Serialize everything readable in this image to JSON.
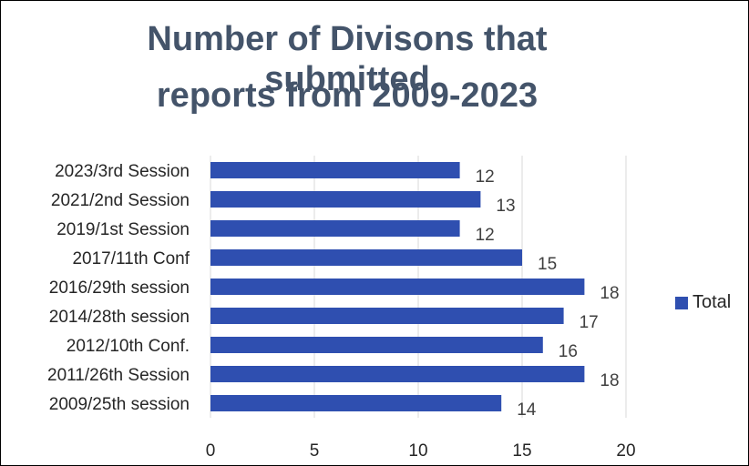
{
  "chart_data": {
    "type": "bar",
    "orientation": "horizontal",
    "title_lines": [
      "Number of Divisons that submitted",
      "reports from 2009-2023"
    ],
    "categories": [
      "2023/3rd Session",
      "2021/2nd Session",
      "2019/1st Session",
      "2017/11th Conf",
      "2016/29th session",
      "2014/28th session",
      "2012/10th Conf.",
      "2011/26th Session",
      "2009/25th session"
    ],
    "series": [
      {
        "name": "Total",
        "values": [
          12,
          13,
          12,
          15,
          18,
          17,
          16,
          18,
          14
        ]
      }
    ],
    "xlim": [
      0,
      20
    ],
    "xticks": [
      0,
      5,
      10,
      15,
      20
    ],
    "grid": true,
    "legend_position": "right",
    "bar_color": "#2f4fb0",
    "grid_color": "#d9d9d9"
  }
}
